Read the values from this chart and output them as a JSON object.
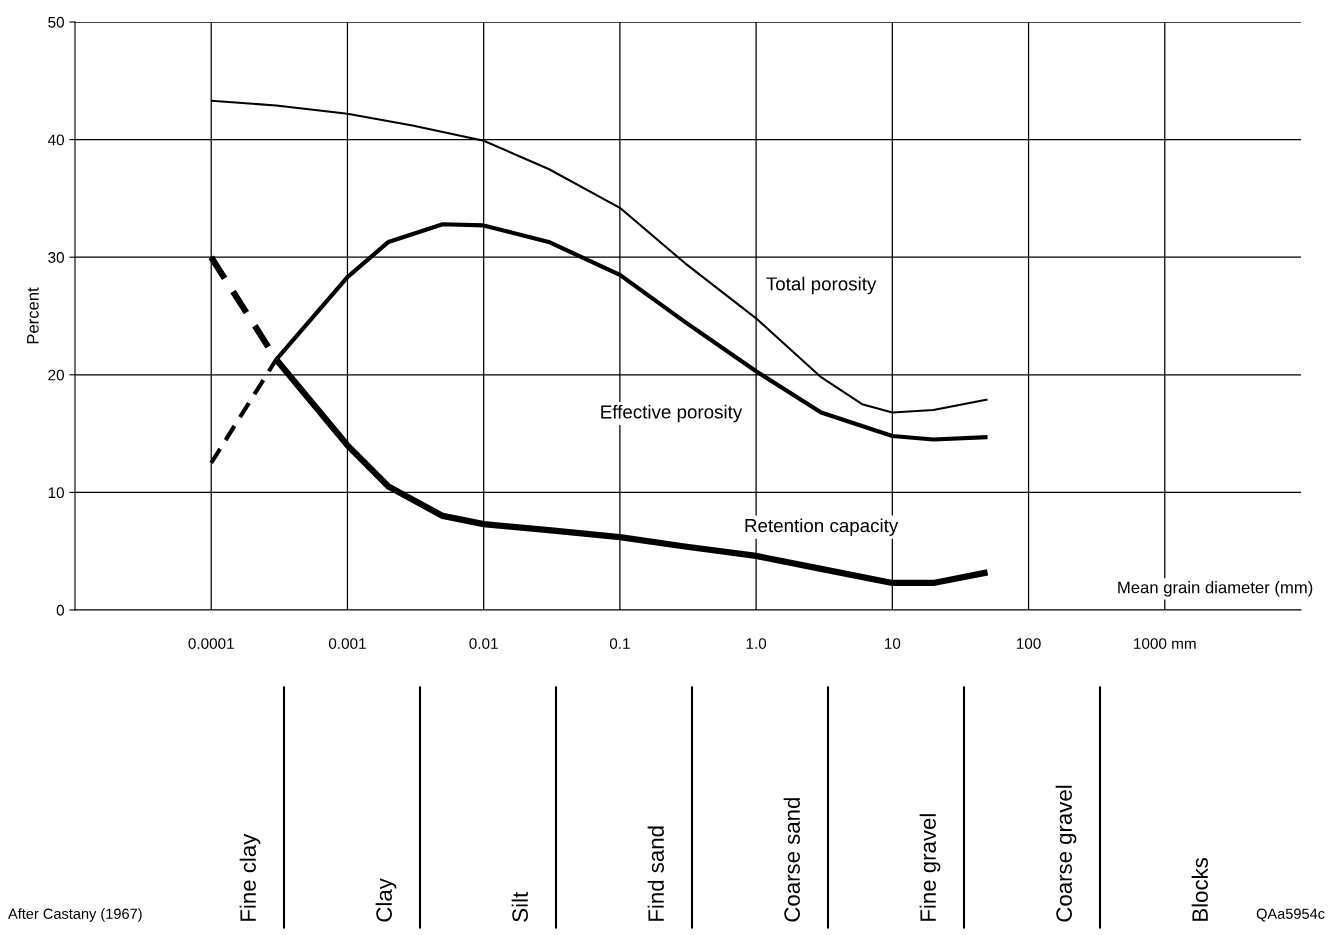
{
  "chart_data": [
    {
      "type": "line",
      "xlabel": "Mean grain diameter (mm)",
      "ylabel": "Percent",
      "log": "x",
      "xlim": [
        1e-05,
        10000
      ],
      "ylim": [
        0,
        50
      ],
      "xticks": [
        0.0001,
        0.001,
        0.01,
        0.1,
        {
          "value": 1,
          "label": "1.0"
        },
        10,
        100,
        {
          "value": 1000,
          "label": "1000 mm"
        }
      ],
      "yticks": [
        0,
        10,
        20,
        30,
        40,
        50
      ],
      "grid": true,
      "legend": false,
      "marker": "none",
      "series": [
        {
          "name": "Total porosity",
          "color": "#000000",
          "line_style": "solid",
          "x": [
            0.0001,
            0.0003,
            0.001,
            0.003,
            0.01,
            0.03,
            0.1,
            0.3,
            1,
            3,
            6,
            10,
            20,
            50
          ],
          "values": [
            43.3,
            42.9,
            42.2,
            41.2,
            39.9,
            37.5,
            34.2,
            29.5,
            24.8,
            19.8,
            17.5,
            16.8,
            17.0,
            17.9
          ]
        },
        {
          "name": "Effective porosity",
          "color": "#000000",
          "line_style": "solid",
          "x": [
            0.0003,
            0.001,
            0.002,
            0.005,
            0.01,
            0.03,
            0.1,
            0.3,
            1,
            3,
            10,
            20,
            50
          ],
          "values": [
            21.3,
            28.3,
            31.3,
            32.8,
            32.7,
            31.3,
            28.5,
            24.5,
            20.3,
            16.8,
            14.8,
            14.5,
            14.7
          ]
        },
        {
          "color": "#000000",
          "line_style": "dashed",
          "x": [
            0.0001,
            0.0003
          ],
          "values": [
            12.5,
            21.3
          ]
        },
        {
          "name": "Retention capacity",
          "color": "#000000",
          "line_style": "solid",
          "x": [
            0.0003,
            0.001,
            0.002,
            0.005,
            0.01,
            0.03,
            0.1,
            0.3,
            1,
            3,
            10,
            20,
            50
          ],
          "values": [
            21.3,
            14.0,
            10.5,
            8.0,
            7.3,
            6.8,
            6.2,
            5.4,
            4.6,
            3.5,
            2.3,
            2.3,
            3.2
          ]
        },
        {
          "color": "#000000",
          "line_style": "dashed",
          "x": [
            0.0001,
            0.0003
          ],
          "values": [
            30.0,
            21.3
          ]
        }
      ],
      "annotations": [
        "After Castany (1967)",
        "QAa5954c"
      ]
    },
    {
      "type": "other",
      "categories": [
        "Fine clay",
        "Clay",
        "Silt",
        "Find sand",
        "Coarse sand",
        "Fine gravel",
        "Coarse gravel",
        "Blocks"
      ]
    }
  ]
}
